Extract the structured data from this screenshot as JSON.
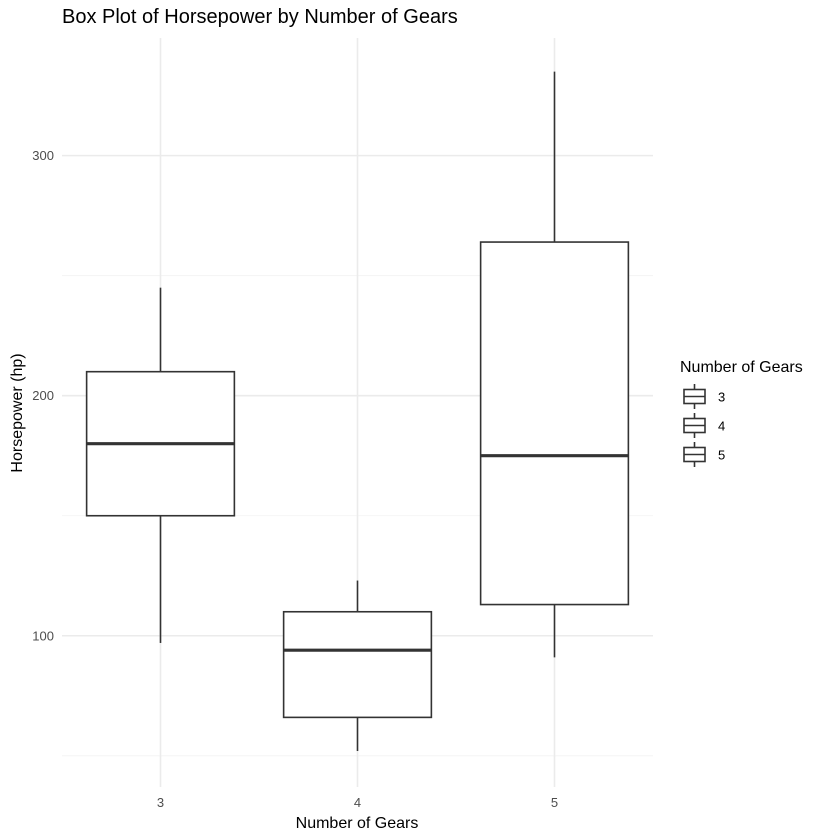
{
  "chart_data": {
    "type": "box",
    "title": "Box Plot of Horsepower by Number of Gears",
    "xlabel": "Number of Gears",
    "ylabel": "Horsepower (hp)",
    "categories": [
      "3",
      "4",
      "5"
    ],
    "boxes": [
      {
        "category": "3",
        "min": 97,
        "q1": 150,
        "median": 180,
        "q3": 210,
        "max": 245
      },
      {
        "category": "4",
        "min": 52,
        "q1": 66,
        "median": 94,
        "q3": 110,
        "max": 123
      },
      {
        "category": "5",
        "min": 91,
        "q1": 113,
        "median": 175,
        "q3": 264,
        "max": 335
      }
    ],
    "ylim": [
      37,
      349
    ],
    "yticks": [
      100,
      200,
      300
    ],
    "ytick_labels": [
      "100",
      "200",
      "300"
    ],
    "grid": true,
    "legend": {
      "title": "Number of Gears",
      "entries": [
        "3",
        "4",
        "5"
      ],
      "placement": "right"
    }
  }
}
